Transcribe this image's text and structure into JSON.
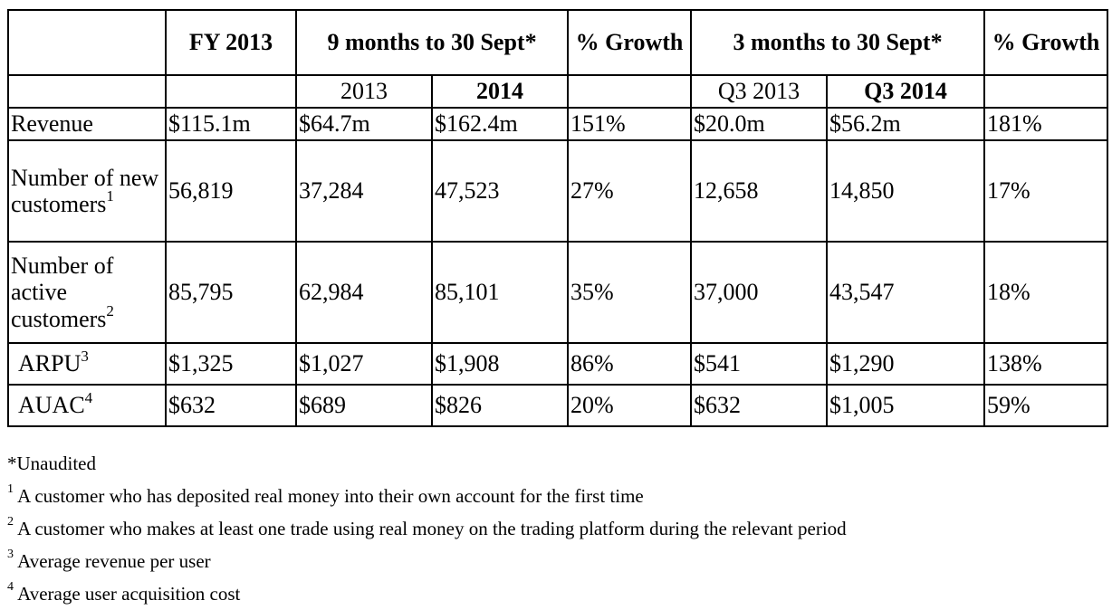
{
  "table": {
    "columns": [
      "",
      "FY 2013",
      "9 months to 30 Sept*",
      "% Growth",
      "3 months to 30 Sept*",
      "% Growth"
    ],
    "header": {
      "fy": "FY 2013",
      "nine_months": "9 months to 30 Sept*",
      "growth_9m": "% Growth",
      "three_months": "3 months to 30 Sept*",
      "growth_3m": "% Growth"
    },
    "subheader": {
      "nine_2013": "2013",
      "nine_2014": "2014",
      "q3_2013": "Q3 2013",
      "q3_2014": "Q3 2014"
    },
    "rows": [
      {
        "label": "Revenue",
        "sup": "",
        "fy2013": "$115.1m",
        "m9_2013": "$64.7m",
        "m9_2014": "$162.4m",
        "m9_growth": "151%",
        "q3_2013": "$20.0m",
        "q3_2014": "$56.2m",
        "q3_growth": "181%"
      },
      {
        "label": "Number of new customers",
        "sup": "1",
        "fy2013": "56,819",
        "m9_2013": "37,284",
        "m9_2014": "47,523",
        "m9_growth": "27%",
        "q3_2013": "12,658",
        "q3_2014": "14,850",
        "q3_growth": "17%"
      },
      {
        "label": "Number of active customers",
        "sup": "2",
        "fy2013": "85,795",
        "m9_2013": "62,984",
        "m9_2014": "85,101",
        "m9_growth": "35%",
        "q3_2013": "37,000",
        "q3_2014": "43,547",
        "q3_growth": "18%"
      },
      {
        "label": "ARPU",
        "sup": "3",
        "fy2013": "$1,325",
        "m9_2013": "$1,027",
        "m9_2014": "$1,908",
        "m9_growth": "86%",
        "q3_2013": "$541",
        "q3_2014": "$1,290",
        "q3_growth": "138%"
      },
      {
        "label": "AUAC",
        "sup": "4",
        "fy2013": "$632",
        "m9_2013": "$689",
        "m9_2014": "$826",
        "m9_growth": "20%",
        "q3_2013": "$632",
        "q3_2014": "$1,005",
        "q3_growth": "59%"
      }
    ]
  },
  "footnotes": {
    "unaudited": "*Unaudited",
    "items": [
      {
        "num": "1",
        "text": "A customer who has deposited real money into their own account for the first time"
      },
      {
        "num": "2",
        "text": "A customer who makes at least one trade using real money on the trading platform during the relevant period"
      },
      {
        "num": "3",
        "text": "Average revenue per user"
      },
      {
        "num": "4",
        "text": "Average user acquisition cost"
      }
    ]
  }
}
